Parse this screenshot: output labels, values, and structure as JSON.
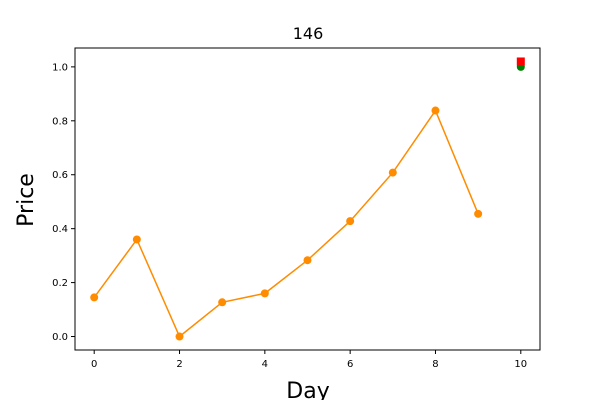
{
  "chart_data": {
    "type": "line",
    "title": "146",
    "xlabel": "Day",
    "ylabel": "Price",
    "xlim": [
      -0.45,
      10.45
    ],
    "ylim": [
      -0.05,
      1.07
    ],
    "xticks": [
      0,
      2,
      4,
      6,
      8,
      10
    ],
    "xtick_labels": [
      "0",
      "2",
      "4",
      "6",
      "8",
      "10"
    ],
    "yticks": [
      0.0,
      0.2,
      0.4,
      0.6,
      0.8,
      1.0
    ],
    "ytick_labels": [
      "0.0",
      "0.2",
      "0.4",
      "0.6",
      "0.8",
      "1.0"
    ],
    "grid": false,
    "series": [
      {
        "x": [
          0,
          1,
          2,
          3,
          4,
          5,
          6,
          7,
          8,
          9
        ],
        "values": [
          0.145,
          0.36,
          0.0,
          0.127,
          0.16,
          0.283,
          0.428,
          0.608,
          0.838,
          0.455
        ],
        "color": "#ff8c00",
        "marker": "circle"
      }
    ],
    "extra_points": [
      {
        "x": 10,
        "y": 1.0,
        "color": "#008000",
        "marker": "circle"
      },
      {
        "x": 10,
        "y": 1.02,
        "color": "#ff0000",
        "marker": "square"
      }
    ]
  }
}
